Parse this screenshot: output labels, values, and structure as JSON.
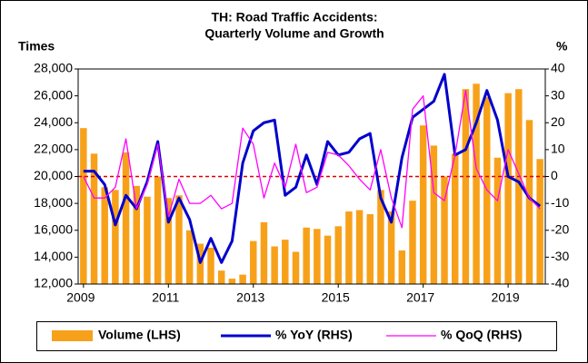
{
  "chart_data": {
    "type": "bar_line_combo",
    "title": [
      "TH: Road Traffic Accidents:",
      "Quarterly Volume and Growth"
    ],
    "y_label": "Times",
    "y2_label": "%",
    "categories": [
      "2009",
      null,
      null,
      null,
      null,
      null,
      null,
      null,
      "2011",
      null,
      null,
      null,
      null,
      null,
      null,
      null,
      "2013",
      null,
      null,
      null,
      null,
      null,
      null,
      null,
      "2015",
      null,
      null,
      null,
      null,
      null,
      null,
      null,
      "2017",
      null,
      null,
      null,
      null,
      null,
      null,
      null,
      "2019",
      null,
      null,
      null
    ],
    "series": [
      {
        "name": "Volume (LHS)",
        "kind": "bar",
        "color": "#f7a11a",
        "axis": "y",
        "values": [
          23600,
          21700,
          19200,
          19000,
          21800,
          19300,
          18500,
          20000,
          18400,
          18600,
          16000,
          15000,
          14700,
          13000,
          12400,
          12700,
          15200,
          16600,
          14800,
          15300,
          14400,
          16200,
          16100,
          15600,
          16300,
          17400,
          17500,
          17200,
          19000,
          17400,
          14500,
          18200,
          23800,
          22300,
          20000,
          21700,
          26500,
          26900,
          25900,
          21400,
          26200,
          26500,
          24200,
          21300
        ]
      },
      {
        "name": "% YoY (RHS)",
        "kind": "line",
        "color": "#0000cc",
        "axis": "y2",
        "values": [
          2,
          2,
          -3,
          -18,
          -7,
          -12,
          -2,
          13,
          -17,
          -8,
          -16,
          -32,
          -23,
          -32,
          -24,
          5,
          17,
          20,
          21,
          -7,
          -4,
          8,
          -3,
          13,
          8,
          9,
          14,
          16,
          -8,
          -17,
          7,
          22,
          25,
          28,
          38,
          8,
          10,
          20,
          32,
          21,
          0,
          -2,
          -8,
          -11
        ]
      },
      {
        "name": "% QoQ (RHS)",
        "kind": "line",
        "color": "#ff00ff",
        "axis": "y2",
        "values": [
          0,
          -8,
          -8,
          -4,
          14,
          -12,
          -3,
          12,
          -15,
          -1,
          -10,
          -10,
          -7,
          -12,
          -10,
          18,
          12,
          -8,
          5,
          -4,
          12,
          -6,
          -4,
          9,
          8,
          4,
          -1,
          -5,
          10,
          -8,
          -19,
          25,
          30,
          -6,
          -9,
          8,
          32,
          3,
          -5,
          -9,
          10,
          1,
          -8,
          -12
        ]
      }
    ],
    "ylim": [
      12000,
      28000
    ],
    "yticks": [
      {
        "value": 12000,
        "label": "12,000"
      },
      {
        "value": 14000,
        "label": "14,000"
      },
      {
        "value": 16000,
        "label": "16,000"
      },
      {
        "value": 18000,
        "label": "18,000"
      },
      {
        "value": 20000,
        "label": "20,000"
      },
      {
        "value": 22000,
        "label": "22,000"
      },
      {
        "value": 24000,
        "label": "24,000"
      },
      {
        "value": 26000,
        "label": "26,000"
      },
      {
        "value": 28000,
        "label": "28,000"
      }
    ],
    "y2lim": [
      -40,
      40
    ],
    "y2ticks": [
      -40,
      -30,
      -20,
      -10,
      0,
      10,
      20,
      30,
      40
    ],
    "reference_line": {
      "axis": "y2",
      "value": 0,
      "color": "#e00000"
    },
    "legend": "bottom"
  }
}
